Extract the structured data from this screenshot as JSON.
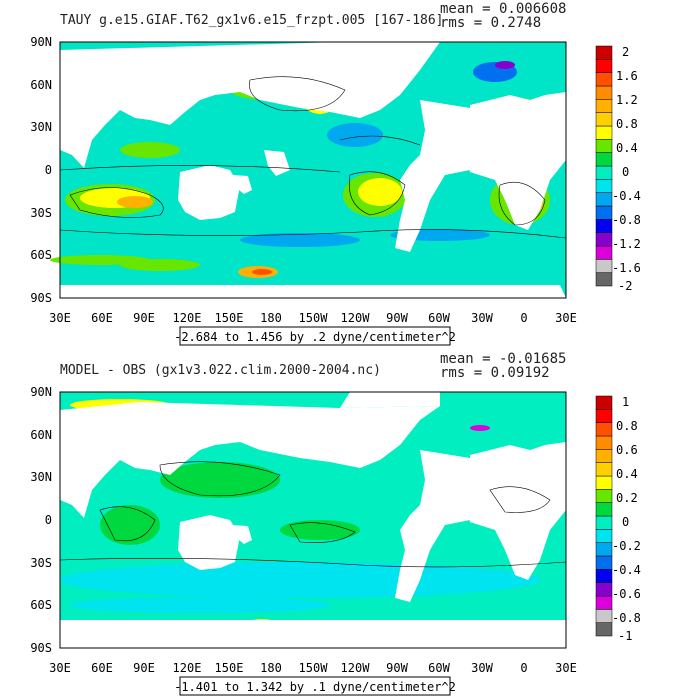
{
  "colors": {
    "land": "#ffffff",
    "palette_top": [
      "#666666",
      "#c8c8c8",
      "#dd00dd",
      "#8800cc",
      "#0000ee",
      "#0070f0",
      "#00a8f0",
      "#00e4f0",
      "#00eec0",
      "#00d840",
      "#66e600",
      "#ffff00",
      "#ffd000",
      "#ffb000",
      "#ff8c00",
      "#ff5000",
      "#ff0000",
      "#cc0000"
    ],
    "palette_bottom": [
      "#666666",
      "#c8c8c8",
      "#dd00dd",
      "#8800cc",
      "#0000ee",
      "#0070f0",
      "#00a8f0",
      "#00e4f0",
      "#00eec0",
      "#00d840",
      "#66e600",
      "#ffff00",
      "#ffd000",
      "#ffb000",
      "#ff8c00",
      "#ff5000",
      "#ff0000",
      "#cc0000"
    ]
  },
  "panels": [
    {
      "id": "top",
      "title": "TAUY g.e15.GIAF.T62_gx1v6.e15_frzpt.005 [167-186]",
      "mean_text": "mean = 0.006608",
      "rms_text": "rms = 0.2748",
      "range_text": "-2.684 to 1.456 by .2 dyne/centimeter^2",
      "lat_labels": [
        "90N",
        "60N",
        "30N",
        "0",
        "30S",
        "60S",
        "90S"
      ],
      "lon_labels": [
        "30E",
        "60E",
        "90E",
        "120E",
        "150E",
        "180",
        "150W",
        "120W",
        "90W",
        "60W",
        "30W",
        "0",
        "30E"
      ],
      "colorbar_labels": [
        "2",
        "1.6",
        "1.2",
        "0.8",
        "0.4",
        "0",
        "-0.4",
        "-0.8",
        "-1.2",
        "-1.6",
        "-2"
      ]
    },
    {
      "id": "bottom",
      "title": "MODEL - OBS (gx1v3.022.clim.2000-2004.nc)",
      "mean_text": "mean = -0.01685",
      "rms_text": "rms = 0.09192",
      "range_text": "-1.401 to 1.342 by .1 dyne/centimeter^2",
      "lat_labels": [
        "90N",
        "60N",
        "30N",
        "0",
        "30S",
        "60S",
        "90S"
      ],
      "lon_labels": [
        "30E",
        "60E",
        "90E",
        "120E",
        "150E",
        "180",
        "150W",
        "120W",
        "90W",
        "60W",
        "30W",
        "0",
        "30E"
      ],
      "colorbar_labels": [
        "1",
        "0.8",
        "0.6",
        "0.4",
        "0.2",
        "0",
        "-0.2",
        "-0.4",
        "-0.6",
        "-0.8",
        "-1"
      ]
    }
  ]
}
